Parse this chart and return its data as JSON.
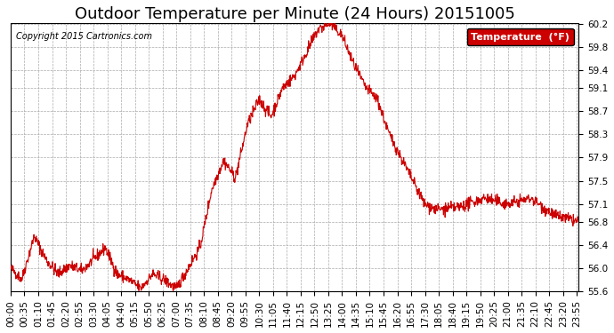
{
  "title": "Outdoor Temperature per Minute (24 Hours) 20151005",
  "copyright_text": "Copyright 2015 Cartronics.com",
  "legend_label": "Temperature  (°F)",
  "line_color": "#CC0000",
  "background_color": "#ffffff",
  "grid_color": "#aaaaaa",
  "ylim": [
    55.6,
    60.2
  ],
  "yticks": [
    55.6,
    56.0,
    56.4,
    56.8,
    57.1,
    57.5,
    57.9,
    58.3,
    58.7,
    59.1,
    59.4,
    59.8,
    60.2
  ],
  "title_fontsize": 13,
  "tick_fontsize": 7.5,
  "total_minutes": 1440,
  "xtick_interval": 35,
  "xtick_labels": [
    "00:00",
    "00:35",
    "01:10",
    "01:45",
    "02:20",
    "02:55",
    "03:30",
    "04:05",
    "04:40",
    "05:15",
    "05:50",
    "06:25",
    "07:00",
    "07:35",
    "08:10",
    "08:45",
    "09:20",
    "09:55",
    "10:30",
    "11:05",
    "11:40",
    "12:15",
    "12:50",
    "13:25",
    "14:00",
    "14:35",
    "15:10",
    "15:45",
    "16:20",
    "16:55",
    "17:30",
    "18:05",
    "18:40",
    "19:15",
    "19:50",
    "20:25",
    "21:00",
    "21:35",
    "22:10",
    "22:45",
    "23:20",
    "23:55"
  ]
}
